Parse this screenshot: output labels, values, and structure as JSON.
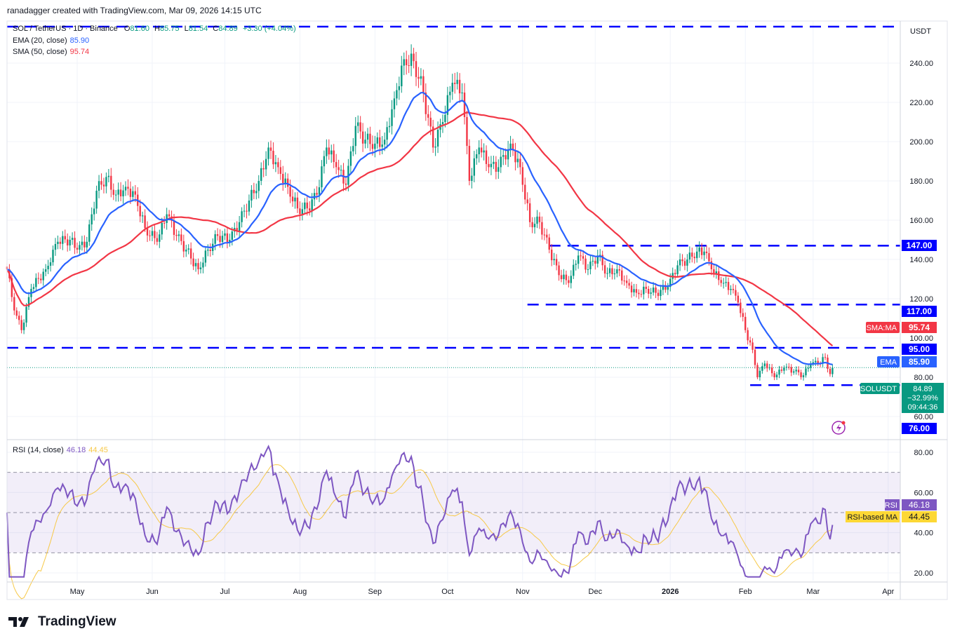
{
  "credit": "ranadagger created with TradingView.com, Mar 09, 2026 14:15 UTC",
  "legend": {
    "symbol": "SOL / TetherUS · 1D · Binance",
    "open_label": "O",
    "open": "81.60",
    "high_label": "H",
    "high": "85.75",
    "low_label": "L",
    "low": "81.54",
    "close_label": "C",
    "close": "84.89",
    "change": "+3.30 (+4.04%)",
    "ema_label": "EMA (20, close)",
    "ema_value": "85.90",
    "sma_label": "SMA (50, close)",
    "sma_value": "95.74",
    "rsi_label": "RSI (14, close)",
    "rsi_value": "46.18",
    "rsi_ma_value": "44.45"
  },
  "axis": {
    "currency": "USDT",
    "price_ticks": [
      "240.00",
      "220.00",
      "200.00",
      "180.00",
      "160.00",
      "140.00",
      "120.00",
      "100.00",
      "80.00",
      "60.00"
    ],
    "rsi_ticks": [
      "80.00",
      "60.00",
      "40.00",
      "20.00"
    ],
    "time_ticks": [
      {
        "label": "May",
        "date": "2025-05-01",
        "bold": false
      },
      {
        "label": "Jun",
        "date": "2025-06-01",
        "bold": false
      },
      {
        "label": "Jul",
        "date": "2025-07-01",
        "bold": false
      },
      {
        "label": "Aug",
        "date": "2025-08-01",
        "bold": false
      },
      {
        "label": "Sep",
        "date": "2025-09-01",
        "bold": false
      },
      {
        "label": "Oct",
        "date": "2025-10-01",
        "bold": false
      },
      {
        "label": "Nov",
        "date": "2025-11-01",
        "bold": false
      },
      {
        "label": "Dec",
        "date": "2025-12-01",
        "bold": false
      },
      {
        "label": "2026",
        "date": "2026-01-01",
        "bold": true
      },
      {
        "label": "Feb",
        "date": "2026-02-01",
        "bold": false
      },
      {
        "label": "Mar",
        "date": "2026-03-01",
        "bold": false
      },
      {
        "label": "Apr",
        "date": "2026-04-01",
        "bold": false
      }
    ]
  },
  "price_labels": {
    "sma_tag": "SMA:MA",
    "sma": "95.74",
    "ema_tag": "EMA",
    "ema": "85.90",
    "symbol_tag": "SOLUSDT",
    "last": "84.89",
    "pct": "−32.99%",
    "countdown": "09:44:36",
    "rsi_tag": "RSI",
    "rsi": "46.18",
    "rsi_ma_tag": "RSI-based MA",
    "rsi_ma": "44.45"
  },
  "colors": {
    "up": "#089981",
    "down": "#f23645",
    "ema": "#2962ff",
    "sma": "#f23645",
    "rsi": "#7e57c2",
    "rsi_ma": "#f7c948",
    "level": "#0000ff"
  },
  "logo": "TradingView",
  "chart_data": {
    "type": "candlestick",
    "symbol": "SOLUSDT",
    "interval": "1D",
    "ylim": [
      55,
      255
    ],
    "rsi_ylim": [
      15,
      88
    ],
    "grid": true,
    "horizontal_levels": [
      {
        "value": 250,
        "label": "",
        "from": "2025-04-01"
      },
      {
        "value": 147,
        "label": "147.00",
        "from": "2025-11-12"
      },
      {
        "value": 117,
        "label": "117.00",
        "from": "2025-11-03"
      },
      {
        "value": 95,
        "label": "95.00",
        "from": "2025-04-01"
      },
      {
        "value": 76,
        "label": "76.00",
        "from": "2026-02-03"
      }
    ],
    "approx_closes": [
      [
        "2025-04-02",
        135
      ],
      [
        "2025-04-05",
        114
      ],
      [
        "2025-04-08",
        104
      ],
      [
        "2025-04-12",
        125
      ],
      [
        "2025-04-18",
        135
      ],
      [
        "2025-04-23",
        149
      ],
      [
        "2025-04-28",
        150
      ],
      [
        "2025-05-01",
        145
      ],
      [
        "2025-05-05",
        149
      ],
      [
        "2025-05-09",
        175
      ],
      [
        "2025-05-13",
        182
      ],
      [
        "2025-05-17",
        173
      ],
      [
        "2025-05-21",
        177
      ],
      [
        "2025-05-25",
        173
      ],
      [
        "2025-05-29",
        156
      ],
      [
        "2025-06-03",
        149
      ],
      [
        "2025-06-07",
        163
      ],
      [
        "2025-06-11",
        152
      ],
      [
        "2025-06-15",
        145
      ],
      [
        "2025-06-20",
        135
      ],
      [
        "2025-06-24",
        145
      ],
      [
        "2025-06-28",
        152
      ],
      [
        "2025-07-03",
        150
      ],
      [
        "2025-07-07",
        159
      ],
      [
        "2025-07-11",
        170
      ],
      [
        "2025-07-15",
        180
      ],
      [
        "2025-07-19",
        197
      ],
      [
        "2025-07-23",
        187
      ],
      [
        "2025-07-27",
        177
      ],
      [
        "2025-07-31",
        166
      ],
      [
        "2025-08-04",
        166
      ],
      [
        "2025-08-08",
        173
      ],
      [
        "2025-08-12",
        197
      ],
      [
        "2025-08-16",
        187
      ],
      [
        "2025-08-20",
        178
      ],
      [
        "2025-08-24",
        208
      ],
      [
        "2025-08-28",
        201
      ],
      [
        "2025-09-01",
        199
      ],
      [
        "2025-09-05",
        201
      ],
      [
        "2025-09-09",
        222
      ],
      [
        "2025-09-13",
        242
      ],
      [
        "2025-09-17",
        241
      ],
      [
        "2025-09-21",
        225
      ],
      [
        "2025-09-25",
        197
      ],
      [
        "2025-09-29",
        210
      ],
      [
        "2025-10-03",
        230
      ],
      [
        "2025-10-07",
        225
      ],
      [
        "2025-10-10",
        180
      ],
      [
        "2025-10-14",
        197
      ],
      [
        "2025-10-18",
        187
      ],
      [
        "2025-10-22",
        187
      ],
      [
        "2025-10-27",
        199
      ],
      [
        "2025-10-31",
        187
      ],
      [
        "2025-11-04",
        159
      ],
      [
        "2025-11-08",
        159
      ],
      [
        "2025-11-12",
        145
      ],
      [
        "2025-11-16",
        132
      ],
      [
        "2025-11-20",
        128
      ],
      [
        "2025-11-24",
        142
      ],
      [
        "2025-11-28",
        135
      ],
      [
        "2025-12-02",
        142
      ],
      [
        "2025-12-06",
        133
      ],
      [
        "2025-12-10",
        135
      ],
      [
        "2025-12-14",
        128
      ],
      [
        "2025-12-18",
        123
      ],
      [
        "2025-12-22",
        125
      ],
      [
        "2025-12-26",
        123
      ],
      [
        "2025-12-31",
        126
      ],
      [
        "2026-01-04",
        137
      ],
      [
        "2026-01-08",
        140
      ],
      [
        "2026-01-12",
        144
      ],
      [
        "2026-01-15",
        144
      ],
      [
        "2026-01-18",
        135
      ],
      [
        "2026-01-22",
        128
      ],
      [
        "2026-01-26",
        125
      ],
      [
        "2026-01-29",
        118
      ],
      [
        "2026-02-01",
        104
      ],
      [
        "2026-02-04",
        94
      ],
      [
        "2026-02-06",
        80
      ],
      [
        "2026-02-09",
        87
      ],
      [
        "2026-02-13",
        80
      ],
      [
        "2026-02-17",
        85
      ],
      [
        "2026-02-21",
        83
      ],
      [
        "2026-02-25",
        81
      ],
      [
        "2026-02-28",
        87
      ],
      [
        "2026-03-03",
        87
      ],
      [
        "2026-03-06",
        90
      ],
      [
        "2026-03-08",
        81.6
      ],
      [
        "2026-03-09",
        84.89
      ]
    ]
  }
}
